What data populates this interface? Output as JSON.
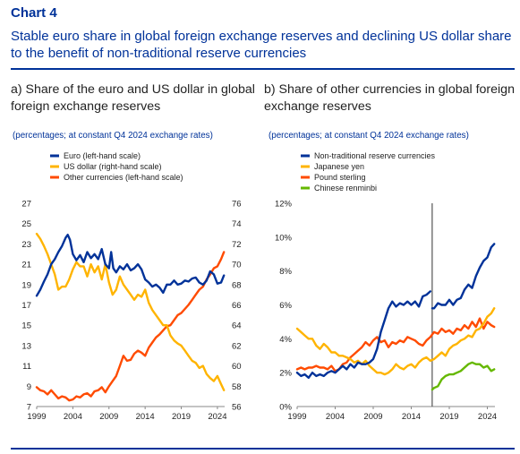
{
  "chart_label": "Chart 4",
  "main_title": "Stable euro share in global foreign exchange reserves and declining US dollar share to the benefit of non-traditional reserve currencies",
  "colors": {
    "euro": "#003299",
    "usd": "#FFB400",
    "other": "#FF4B00",
    "nontrad": "#003299",
    "yen": "#FFB400",
    "gbp": "#FF4B00",
    "cny": "#65B800",
    "vline": "#555555"
  },
  "chart_data": [
    {
      "type": "line",
      "title": "a) Share of the euro and US dollar in global foreign exchange reserves",
      "subtitle": "(percentages; at constant Q4 2024 exchange rates)",
      "x_ticks": [
        "1999",
        "2004",
        "2009",
        "2014",
        "2019",
        "2024"
      ],
      "xlim": [
        1999,
        2025
      ],
      "y_left": {
        "lim": [
          7,
          27
        ],
        "ticks": [
          "7",
          "9",
          "11",
          "13",
          "15",
          "17",
          "19",
          "21",
          "23",
          "25",
          "27"
        ]
      },
      "y_right": {
        "lim": [
          56,
          76
        ],
        "ticks": [
          "56",
          "58",
          "60",
          "62",
          "64",
          "66",
          "68",
          "70",
          "72",
          "74",
          "76"
        ]
      },
      "legend": [
        "Euro (left-hand scale)",
        "US dollar (right-hand scale)",
        "Other currencies (left-hand scale)"
      ],
      "series": [
        {
          "name": "Euro (left-hand scale)",
          "axis": "left",
          "x": [
            1999.0,
            1999.5,
            2000.0,
            2000.5,
            2001.0,
            2001.5,
            2002.0,
            2002.5,
            2003.0,
            2003.3,
            2003.6,
            2004.0,
            2004.5,
            2005.0,
            2005.5,
            2006.0,
            2006.5,
            2007.0,
            2007.5,
            2008.0,
            2008.5,
            2009.0,
            2009.3,
            2009.6,
            2010.0,
            2010.5,
            2011.0,
            2011.5,
            2012.0,
            2012.5,
            2013.0,
            2013.5,
            2014.0,
            2014.5,
            2015.0,
            2015.5,
            2016.0,
            2016.5,
            2017.0,
            2017.5,
            2018.0,
            2018.5,
            2019.0,
            2019.5,
            2020.0,
            2020.5,
            2021.0,
            2021.5,
            2022.0,
            2022.5,
            2023.0,
            2023.5,
            2024.0,
            2024.5,
            2024.9
          ],
          "values": [
            17.9,
            18.5,
            19.3,
            20.0,
            21.0,
            21.5,
            22.2,
            22.8,
            23.6,
            23.9,
            23.4,
            22.0,
            21.4,
            21.9,
            21.2,
            22.2,
            21.6,
            22.0,
            21.5,
            22.5,
            21.0,
            20.6,
            22.2,
            20.6,
            20.2,
            20.8,
            20.5,
            21.0,
            20.4,
            20.6,
            21.0,
            20.5,
            19.5,
            19.2,
            18.8,
            19.0,
            18.7,
            18.2,
            19.0,
            19.0,
            19.4,
            19.0,
            19.1,
            19.4,
            19.3,
            19.6,
            19.7,
            19.2,
            19.0,
            19.4,
            20.3,
            20.0,
            19.1,
            19.2,
            19.9
          ]
        },
        {
          "name": "US dollar (right-hand scale)",
          "axis": "right",
          "x": [
            1999.0,
            1999.5,
            2000.0,
            2000.5,
            2001.0,
            2001.5,
            2002.0,
            2002.5,
            2003.0,
            2003.5,
            2004.0,
            2004.5,
            2005.0,
            2005.5,
            2006.0,
            2006.5,
            2007.0,
            2007.5,
            2008.0,
            2008.5,
            2009.0,
            2009.5,
            2010.0,
            2010.5,
            2011.0,
            2011.5,
            2012.0,
            2012.5,
            2013.0,
            2013.5,
            2014.0,
            2014.5,
            2015.0,
            2015.5,
            2016.0,
            2016.5,
            2017.0,
            2017.5,
            2018.0,
            2018.5,
            2019.0,
            2019.5,
            2020.0,
            2020.5,
            2021.0,
            2021.5,
            2022.0,
            2022.5,
            2023.0,
            2023.5,
            2024.0,
            2024.5,
            2024.9
          ],
          "values": [
            73.0,
            72.5,
            71.8,
            71.0,
            70.0,
            69.0,
            67.5,
            67.8,
            67.8,
            68.5,
            69.5,
            70.2,
            69.8,
            69.8,
            68.8,
            70.0,
            69.2,
            69.8,
            68.5,
            70.0,
            68.2,
            67.0,
            67.5,
            68.8,
            68.0,
            67.5,
            67.0,
            66.5,
            67.0,
            66.8,
            67.5,
            66.2,
            65.5,
            65.0,
            64.5,
            64.0,
            64.0,
            63.0,
            62.5,
            62.2,
            62.0,
            61.5,
            61.0,
            60.5,
            60.3,
            59.8,
            60.0,
            59.2,
            58.8,
            58.5,
            59.0,
            58.2,
            57.6
          ]
        },
        {
          "name": "Other currencies (left-hand scale)",
          "axis": "left",
          "x": [
            1999.0,
            1999.5,
            2000.0,
            2000.5,
            2001.0,
            2001.5,
            2002.0,
            2002.5,
            2003.0,
            2003.5,
            2004.0,
            2004.5,
            2005.0,
            2005.5,
            2006.0,
            2006.5,
            2007.0,
            2007.5,
            2008.0,
            2008.5,
            2009.0,
            2009.5,
            2010.0,
            2010.5,
            2011.0,
            2011.5,
            2012.0,
            2012.5,
            2013.0,
            2013.5,
            2014.0,
            2014.5,
            2015.0,
            2015.5,
            2016.0,
            2016.5,
            2017.0,
            2017.5,
            2018.0,
            2018.5,
            2019.0,
            2019.5,
            2020.0,
            2020.5,
            2021.0,
            2021.5,
            2022.0,
            2022.5,
            2023.0,
            2023.5,
            2024.0,
            2024.5,
            2024.9
          ],
          "values": [
            8.9,
            8.6,
            8.5,
            8.2,
            8.6,
            8.2,
            7.8,
            8.0,
            7.9,
            7.6,
            7.7,
            8.0,
            7.9,
            8.2,
            8.3,
            8.0,
            8.5,
            8.6,
            8.9,
            8.4,
            9.0,
            9.5,
            10.0,
            11.0,
            12.0,
            11.5,
            11.6,
            12.2,
            12.5,
            12.3,
            12.0,
            12.8,
            13.3,
            13.8,
            14.1,
            14.5,
            14.9,
            15.0,
            15.5,
            16.0,
            16.2,
            16.6,
            17.0,
            17.5,
            18.0,
            18.5,
            18.8,
            19.5,
            20.0,
            20.6,
            20.8,
            21.5,
            22.2
          ]
        }
      ]
    },
    {
      "type": "line",
      "title": "b) Share of other currencies in global foreign exchange reserves",
      "subtitle": "(percentages; at constant Q4 2024 exchange rates)",
      "x_ticks": [
        "1999",
        "2004",
        "2009",
        "2014",
        "2019",
        "2024"
      ],
      "xlim": [
        1999,
        2025
      ],
      "y": {
        "lim": [
          0,
          12
        ],
        "ticks": [
          "0%",
          "2%",
          "4%",
          "6%",
          "8%",
          "10%",
          "12%"
        ]
      },
      "vertical_line_x": 2016.75,
      "legend": [
        "Non-traditional reserve currencies",
        "Japanese yen",
        "Pound sterling",
        "Chinese renminbi"
      ],
      "series": [
        {
          "name": "Non-traditional reserve currencies",
          "segments": [
            {
              "x": [
                1999.0,
                1999.5,
                2000.0,
                2000.5,
                2001.0,
                2001.5,
                2002.0,
                2002.5,
                2003.0,
                2003.5,
                2004.0,
                2004.5,
                2005.0,
                2005.5,
                2006.0,
                2006.5,
                2007.0,
                2007.5,
                2008.0,
                2008.5,
                2009.0,
                2009.5,
                2010.0,
                2010.5,
                2011.0,
                2011.5,
                2012.0,
                2012.5,
                2013.0,
                2013.5,
                2014.0,
                2014.5,
                2015.0,
                2015.5,
                2016.0,
                2016.5
              ],
              "values": [
                2.0,
                1.8,
                1.9,
                1.7,
                2.0,
                1.8,
                1.9,
                1.8,
                2.0,
                2.1,
                2.0,
                2.2,
                2.4,
                2.2,
                2.5,
                2.3,
                2.6,
                2.5,
                2.5,
                2.6,
                2.8,
                3.4,
                4.4,
                5.1,
                5.8,
                6.2,
                5.9,
                6.1,
                6.0,
                6.2,
                6.0,
                6.2,
                5.9,
                6.5,
                6.6,
                6.8
              ]
            },
            {
              "x": [
                2016.75,
                2017.0,
                2017.5,
                2018.0,
                2018.5,
                2019.0,
                2019.5,
                2020.0,
                2020.5,
                2021.0,
                2021.5,
                2022.0,
                2022.5,
                2023.0,
                2023.5,
                2024.0,
                2024.5,
                2024.9
              ],
              "values": [
                5.8,
                5.8,
                6.1,
                6.0,
                6.0,
                6.3,
                6.0,
                6.3,
                6.4,
                6.9,
                7.2,
                7.0,
                7.7,
                8.2,
                8.6,
                8.8,
                9.4,
                9.6
              ]
            }
          ]
        },
        {
          "name": "Japanese yen",
          "x": [
            1999.0,
            1999.5,
            2000.0,
            2000.5,
            2001.0,
            2001.5,
            2002.0,
            2002.5,
            2003.0,
            2003.5,
            2004.0,
            2004.5,
            2005.0,
            2005.5,
            2006.0,
            2006.5,
            2007.0,
            2007.5,
            2008.0,
            2008.5,
            2009.0,
            2009.5,
            2010.0,
            2010.5,
            2011.0,
            2011.5,
            2012.0,
            2012.5,
            2013.0,
            2013.5,
            2014.0,
            2014.5,
            2015.0,
            2015.5,
            2016.0,
            2016.5,
            2017.0,
            2017.5,
            2018.0,
            2018.5,
            2019.0,
            2019.5,
            2020.0,
            2020.5,
            2021.0,
            2021.5,
            2022.0,
            2022.5,
            2023.0,
            2023.5,
            2024.0,
            2024.5,
            2024.9
          ],
          "values": [
            4.6,
            4.4,
            4.2,
            4.0,
            4.0,
            3.6,
            3.4,
            3.7,
            3.5,
            3.2,
            3.2,
            3.0,
            3.0,
            2.9,
            2.8,
            2.6,
            2.7,
            2.5,
            2.7,
            2.4,
            2.2,
            2.0,
            2.0,
            1.9,
            2.0,
            2.2,
            2.5,
            2.3,
            2.2,
            2.4,
            2.5,
            2.3,
            2.6,
            2.8,
            2.9,
            2.7,
            2.8,
            3.0,
            3.2,
            3.0,
            3.4,
            3.6,
            3.7,
            3.9,
            4.0,
            4.2,
            4.1,
            4.5,
            4.6,
            4.9,
            5.3,
            5.5,
            5.8
          ]
        },
        {
          "name": "Pound sterling",
          "x": [
            1999.0,
            1999.5,
            2000.0,
            2000.5,
            2001.0,
            2001.5,
            2002.0,
            2002.5,
            2003.0,
            2003.5,
            2004.0,
            2004.5,
            2005.0,
            2005.5,
            2006.0,
            2006.5,
            2007.0,
            2007.5,
            2008.0,
            2008.5,
            2009.0,
            2009.5,
            2010.0,
            2010.5,
            2011.0,
            2011.5,
            2012.0,
            2012.5,
            2013.0,
            2013.5,
            2014.0,
            2014.5,
            2015.0,
            2015.5,
            2016.0,
            2016.5,
            2017.0,
            2017.5,
            2018.0,
            2018.5,
            2019.0,
            2019.5,
            2020.0,
            2020.5,
            2021.0,
            2021.5,
            2022.0,
            2022.5,
            2023.0,
            2023.5,
            2024.0,
            2024.5,
            2024.9
          ],
          "values": [
            2.2,
            2.3,
            2.2,
            2.3,
            2.3,
            2.4,
            2.3,
            2.3,
            2.2,
            2.4,
            2.1,
            2.2,
            2.5,
            2.6,
            2.9,
            3.1,
            3.3,
            3.5,
            3.8,
            3.6,
            3.9,
            4.1,
            3.8,
            3.9,
            3.5,
            3.8,
            3.7,
            3.9,
            3.8,
            4.1,
            4.0,
            3.9,
            3.7,
            3.6,
            3.9,
            4.1,
            4.4,
            4.3,
            4.6,
            4.4,
            4.5,
            4.3,
            4.6,
            4.5,
            4.8,
            4.6,
            5.0,
            4.7,
            5.2,
            4.6,
            5.0,
            4.8,
            4.7
          ]
        },
        {
          "name": "Chinese renminbi",
          "x": [
            2016.75,
            2017.0,
            2017.5,
            2018.0,
            2018.5,
            2019.0,
            2019.5,
            2020.0,
            2020.5,
            2021.0,
            2021.5,
            2022.0,
            2022.5,
            2023.0,
            2023.5,
            2024.0,
            2024.5,
            2024.9
          ],
          "values": [
            1.0,
            1.1,
            1.2,
            1.6,
            1.8,
            1.9,
            1.9,
            2.0,
            2.1,
            2.3,
            2.5,
            2.6,
            2.5,
            2.5,
            2.3,
            2.4,
            2.1,
            2.2
          ]
        }
      ]
    }
  ]
}
